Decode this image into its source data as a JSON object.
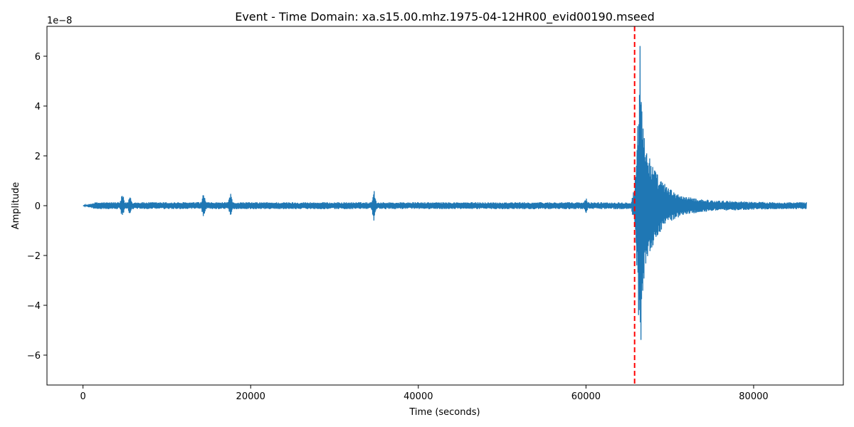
{
  "chart_data": {
    "type": "line",
    "title": "Event - Time Domain: xa.s15.00.mhz.1975-04-12HR00_evid00190.mseed",
    "xlabel": "Time (seconds)",
    "ylabel": "Amplitude",
    "y_offset_label": "1e−8",
    "y_scale": 1e-08,
    "xlim": [
      -4300,
      90700
    ],
    "ylim": [
      -7.2,
      7.2
    ],
    "x_ticks": [
      0,
      20000,
      40000,
      60000,
      80000
    ],
    "x_tick_labels": [
      "0",
      "20000",
      "40000",
      "60000",
      "80000"
    ],
    "y_ticks": [
      -6,
      -4,
      -2,
      0,
      2,
      4,
      6
    ],
    "y_tick_labels": [
      "−6",
      "−4",
      "−2",
      "0",
      "2",
      "4",
      "6"
    ],
    "grid": false,
    "line_color": "#1f77b4",
    "marker_color": "#ff0000",
    "event_marker": {
      "x": 65800,
      "style": "dashed"
    },
    "signal": {
      "start": 0,
      "end": 86300,
      "samples": 2400,
      "noise_amplitude": 0.14,
      "features": [
        {
          "x": 4700,
          "amp": 0.45
        },
        {
          "x": 5600,
          "amp": 0.4
        },
        {
          "x": 14400,
          "amp": 0.5
        },
        {
          "x": 17600,
          "amp": 0.48
        },
        {
          "x": 34700,
          "amp": 0.62
        },
        {
          "x": 60000,
          "amp": 0.3
        },
        {
          "x": 65700,
          "amp": 0.6
        }
      ],
      "envelope": [
        [
          65800,
          0.7
        ],
        [
          66050,
          2.5
        ],
        [
          66250,
          4.2
        ],
        [
          66450,
          6.6
        ],
        [
          66700,
          4.0
        ],
        [
          67000,
          3.0
        ],
        [
          67500,
          2.1
        ],
        [
          68000,
          1.6
        ],
        [
          68800,
          1.1
        ],
        [
          69500,
          0.85
        ],
        [
          70500,
          0.55
        ],
        [
          72000,
          0.35
        ],
        [
          75000,
          0.22
        ],
        [
          80000,
          0.16
        ],
        [
          86300,
          0.12
        ]
      ]
    }
  }
}
